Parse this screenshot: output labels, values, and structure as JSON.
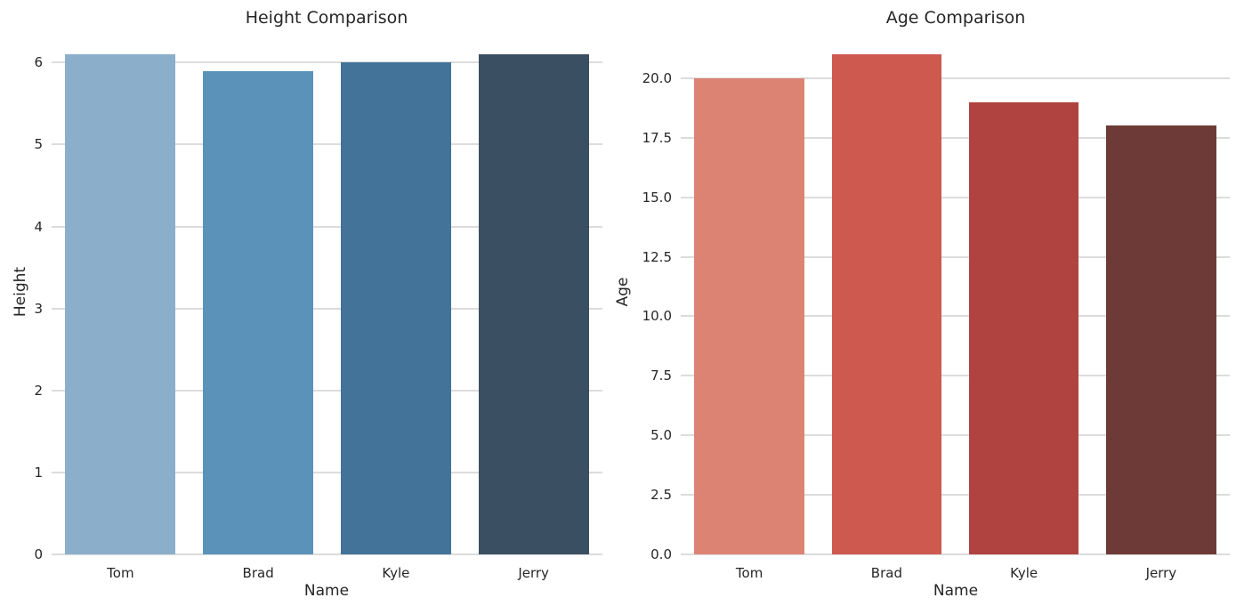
{
  "figure": {
    "background_color": "#ffffff",
    "text_color": "#262626",
    "grid_color": "#dcdcdc"
  },
  "chart_data": [
    {
      "type": "bar",
      "title": "Height Comparison",
      "xlabel": "Name",
      "ylabel": "Height",
      "categories": [
        "Tom",
        "Brad",
        "Kyle",
        "Jerry"
      ],
      "values": [
        6.1,
        5.9,
        6.0,
        6.1
      ],
      "ylim": [
        0,
        6.405
      ],
      "y_ticks": [
        0,
        1,
        2,
        3,
        4,
        5,
        6
      ],
      "y_tick_labels": [
        "0",
        "1",
        "2",
        "3",
        "4",
        "5",
        "6"
      ],
      "grid": true,
      "legend": false,
      "bar_width_fraction": 0.8,
      "bar_colors": [
        "#8bafcb",
        "#5b92ba",
        "#437398",
        "#3b4f63"
      ]
    },
    {
      "type": "bar",
      "title": "Age Comparison",
      "xlabel": "Name",
      "ylabel": "Age",
      "categories": [
        "Tom",
        "Brad",
        "Kyle",
        "Jerry"
      ],
      "values": [
        20,
        21,
        19,
        18
      ],
      "ylim": [
        0,
        22.05
      ],
      "y_ticks": [
        0,
        2.5,
        5,
        7.5,
        10,
        12.5,
        15,
        17.5,
        20
      ],
      "y_tick_labels": [
        "0.0",
        "2.5",
        "5.0",
        "7.5",
        "10.0",
        "12.5",
        "15.0",
        "17.5",
        "20.0"
      ],
      "grid": true,
      "legend": false,
      "bar_width_fraction": 0.8,
      "bar_colors": [
        "#dd8374",
        "#cd594f",
        "#b0433f",
        "#6e3a37"
      ]
    }
  ]
}
